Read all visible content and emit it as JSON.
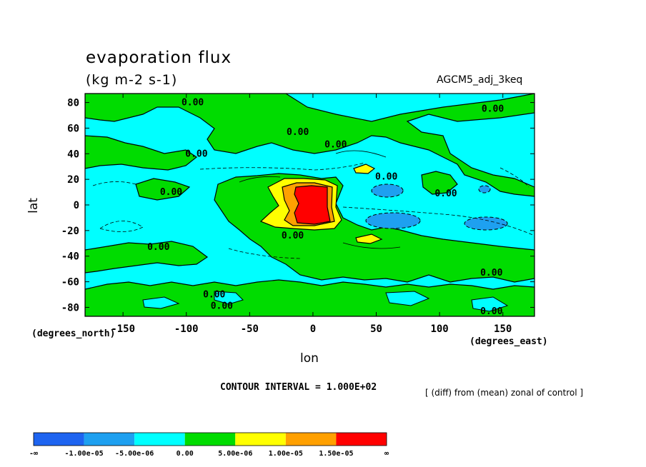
{
  "title": "evaporation flux",
  "units": "(kg m-2 s-1)",
  "model_label": "AGCM5_adj_3keq",
  "xlabel": "lon",
  "ylabel": "lat",
  "x_unit_label": "(degrees_east)",
  "y_unit_label": "(degrees_north)",
  "contour_interval_text": "CONTOUR INTERVAL = 1.000E+02",
  "diff_note": "[ (diff) from (mean) zonal of control ]",
  "chart_data": {
    "type": "heatmap",
    "title": "evaporation flux",
    "subtitle": "(kg m-2 s-1)",
    "xlabel": "lon",
    "ylabel": "lat",
    "xlim": [
      -180,
      175
    ],
    "ylim": [
      -87,
      87
    ],
    "x_ticks": [
      -150,
      -100,
      -50,
      0,
      50,
      100,
      150
    ],
    "y_ticks": [
      80,
      60,
      40,
      20,
      0,
      -20,
      -40,
      -60,
      -80
    ],
    "contour_labels": [
      {
        "text": "0.00",
        "lon": -95,
        "lat": 80
      },
      {
        "text": "0.00",
        "lon": -12,
        "lat": 57
      },
      {
        "text": "0.00",
        "lon": 18,
        "lat": 47
      },
      {
        "text": "0.00",
        "lon": -92,
        "lat": 40
      },
      {
        "text": "0.00",
        "lon": 142,
        "lat": 75
      },
      {
        "text": "0.00",
        "lon": 58,
        "lat": 22
      },
      {
        "text": "0.00",
        "lon": -112,
        "lat": 10
      },
      {
        "text": "0.00",
        "lon": 105,
        "lat": 9
      },
      {
        "text": "0.00",
        "lon": -16,
        "lat": -24
      },
      {
        "text": "0.00",
        "lon": -122,
        "lat": -33
      },
      {
        "text": "0.00",
        "lon": 141,
        "lat": -53
      },
      {
        "text": "0.00",
        "lon": -78,
        "lat": -70
      },
      {
        "text": "0.00",
        "lon": -72,
        "lat": -79
      },
      {
        "text": "0.00",
        "lon": 141,
        "lat": -83
      }
    ],
    "colorbar": {
      "colors": [
        "#1e64f0",
        "#1ea0f0",
        "#00ffff",
        "#00dc00",
        "#ffff00",
        "#ffa000",
        "#ff0000"
      ],
      "labels": [
        "-∞",
        "-1.00e-05",
        "-5.00e-06",
        "0.00",
        "5.00e-06",
        "1.00e-05",
        "1.50e-05",
        "∞"
      ]
    }
  }
}
